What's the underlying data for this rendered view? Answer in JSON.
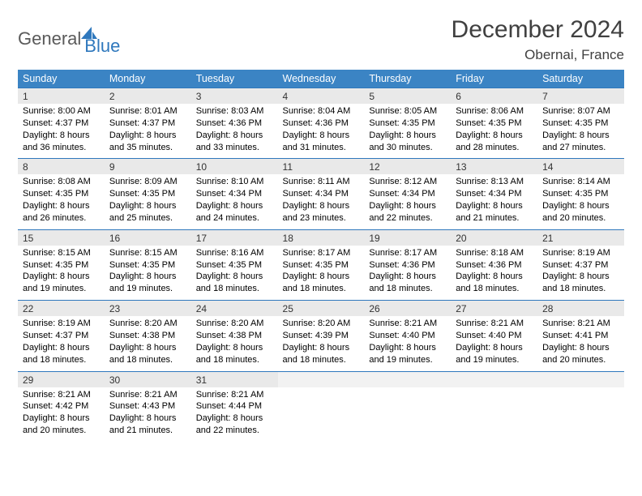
{
  "brand": {
    "part1": "General",
    "part2": "Blue"
  },
  "title": "December 2024",
  "location": "Obernai, France",
  "colors": {
    "header_bg": "#3b84c4",
    "header_text": "#ffffff",
    "daynum_bg": "#e9e9e9",
    "rule": "#2f78bd",
    "logo_gray": "#5a5a5a",
    "logo_blue": "#2f78bd",
    "page_bg": "#ffffff"
  },
  "weekdays": [
    "Sunday",
    "Monday",
    "Tuesday",
    "Wednesday",
    "Thursday",
    "Friday",
    "Saturday"
  ],
  "weeks": [
    [
      {
        "n": "1",
        "sr": "8:00 AM",
        "ss": "4:37 PM",
        "dl": "8 hours and 36 minutes."
      },
      {
        "n": "2",
        "sr": "8:01 AM",
        "ss": "4:37 PM",
        "dl": "8 hours and 35 minutes."
      },
      {
        "n": "3",
        "sr": "8:03 AM",
        "ss": "4:36 PM",
        "dl": "8 hours and 33 minutes."
      },
      {
        "n": "4",
        "sr": "8:04 AM",
        "ss": "4:36 PM",
        "dl": "8 hours and 31 minutes."
      },
      {
        "n": "5",
        "sr": "8:05 AM",
        "ss": "4:35 PM",
        "dl": "8 hours and 30 minutes."
      },
      {
        "n": "6",
        "sr": "8:06 AM",
        "ss": "4:35 PM",
        "dl": "8 hours and 28 minutes."
      },
      {
        "n": "7",
        "sr": "8:07 AM",
        "ss": "4:35 PM",
        "dl": "8 hours and 27 minutes."
      }
    ],
    [
      {
        "n": "8",
        "sr": "8:08 AM",
        "ss": "4:35 PM",
        "dl": "8 hours and 26 minutes."
      },
      {
        "n": "9",
        "sr": "8:09 AM",
        "ss": "4:35 PM",
        "dl": "8 hours and 25 minutes."
      },
      {
        "n": "10",
        "sr": "8:10 AM",
        "ss": "4:34 PM",
        "dl": "8 hours and 24 minutes."
      },
      {
        "n": "11",
        "sr": "8:11 AM",
        "ss": "4:34 PM",
        "dl": "8 hours and 23 minutes."
      },
      {
        "n": "12",
        "sr": "8:12 AM",
        "ss": "4:34 PM",
        "dl": "8 hours and 22 minutes."
      },
      {
        "n": "13",
        "sr": "8:13 AM",
        "ss": "4:34 PM",
        "dl": "8 hours and 21 minutes."
      },
      {
        "n": "14",
        "sr": "8:14 AM",
        "ss": "4:35 PM",
        "dl": "8 hours and 20 minutes."
      }
    ],
    [
      {
        "n": "15",
        "sr": "8:15 AM",
        "ss": "4:35 PM",
        "dl": "8 hours and 19 minutes."
      },
      {
        "n": "16",
        "sr": "8:15 AM",
        "ss": "4:35 PM",
        "dl": "8 hours and 19 minutes."
      },
      {
        "n": "17",
        "sr": "8:16 AM",
        "ss": "4:35 PM",
        "dl": "8 hours and 18 minutes."
      },
      {
        "n": "18",
        "sr": "8:17 AM",
        "ss": "4:35 PM",
        "dl": "8 hours and 18 minutes."
      },
      {
        "n": "19",
        "sr": "8:17 AM",
        "ss": "4:36 PM",
        "dl": "8 hours and 18 minutes."
      },
      {
        "n": "20",
        "sr": "8:18 AM",
        "ss": "4:36 PM",
        "dl": "8 hours and 18 minutes."
      },
      {
        "n": "21",
        "sr": "8:19 AM",
        "ss": "4:37 PM",
        "dl": "8 hours and 18 minutes."
      }
    ],
    [
      {
        "n": "22",
        "sr": "8:19 AM",
        "ss": "4:37 PM",
        "dl": "8 hours and 18 minutes."
      },
      {
        "n": "23",
        "sr": "8:20 AM",
        "ss": "4:38 PM",
        "dl": "8 hours and 18 minutes."
      },
      {
        "n": "24",
        "sr": "8:20 AM",
        "ss": "4:38 PM",
        "dl": "8 hours and 18 minutes."
      },
      {
        "n": "25",
        "sr": "8:20 AM",
        "ss": "4:39 PM",
        "dl": "8 hours and 18 minutes."
      },
      {
        "n": "26",
        "sr": "8:21 AM",
        "ss": "4:40 PM",
        "dl": "8 hours and 19 minutes."
      },
      {
        "n": "27",
        "sr": "8:21 AM",
        "ss": "4:40 PM",
        "dl": "8 hours and 19 minutes."
      },
      {
        "n": "28",
        "sr": "8:21 AM",
        "ss": "4:41 PM",
        "dl": "8 hours and 20 minutes."
      }
    ],
    [
      {
        "n": "29",
        "sr": "8:21 AM",
        "ss": "4:42 PM",
        "dl": "8 hours and 20 minutes."
      },
      {
        "n": "30",
        "sr": "8:21 AM",
        "ss": "4:43 PM",
        "dl": "8 hours and 21 minutes."
      },
      {
        "n": "31",
        "sr": "8:21 AM",
        "ss": "4:44 PM",
        "dl": "8 hours and 22 minutes."
      },
      null,
      null,
      null,
      null
    ]
  ],
  "labels": {
    "sunrise": "Sunrise:",
    "sunset": "Sunset:",
    "daylight": "Daylight:"
  }
}
